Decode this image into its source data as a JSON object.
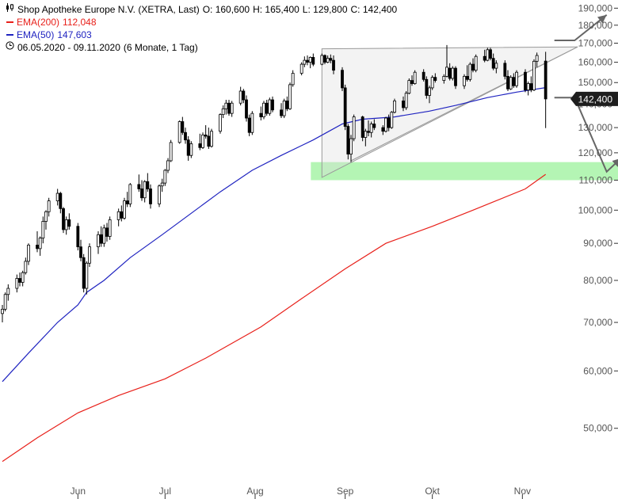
{
  "header": {
    "title": "Shop Apotheke Europe N.V. (XETRA, Last)",
    "ohlc": {
      "open": "O: 160,600",
      "high": "H: 165,400",
      "low": "L: 129,800",
      "close": "C: 142,400"
    },
    "ema200": {
      "label": "EMA(200)",
      "value": "112,048",
      "color": "#e8201a"
    },
    "ema50": {
      "label": "EMA(50)",
      "value": "147,603",
      "color": "#1f23c0"
    },
    "range": "06.05.2020 - 09.11.2020",
    "period": "(6 Monate, 1 Tag)",
    "chart_icon": "candlestick-icon",
    "clock_icon": "clock-icon"
  },
  "chart_data": {
    "type": "candlestick",
    "y_scale": "log",
    "ylim": [
      42000,
      195000
    ],
    "xlim": [
      "2020-05-06",
      "2020-11-17"
    ],
    "y_ticks": [
      50000,
      60000,
      70000,
      80000,
      90000,
      100000,
      110000,
      120000,
      130000,
      140000,
      150000,
      160000,
      170000,
      180000,
      190000
    ],
    "y_tick_labels": [
      "50,000",
      "60,000",
      "70,000",
      "80,000",
      "90,000",
      "100,000",
      "110,000",
      "120,000",
      "130,000",
      "140,000",
      "150,000",
      "160,000",
      "170,000",
      "180,000",
      "190,000"
    ],
    "x_ticks": [
      "2020-06-01",
      "2020-07-01",
      "2020-08-01",
      "2020-09-01",
      "2020-10-01",
      "2020-11-01"
    ],
    "x_tick_labels": [
      "Jun",
      "Jul",
      "Aug",
      "Sep",
      "Okt",
      "Nov"
    ],
    "last_price_label": "142,400",
    "last_price": 142400,
    "grid": false,
    "colors": {
      "up": "#ffffff",
      "down": "#000000",
      "ema200": "#e8201a",
      "ema50": "#1f23c0",
      "support_zone": "#b4f5b4",
      "triangle": "#999999",
      "arrows": "#666666"
    },
    "candles": [
      [
        "2020-05-06",
        72000,
        74000,
        70000,
        73000
      ],
      [
        "2020-05-07",
        73000,
        77000,
        72500,
        76500
      ],
      [
        "2020-05-08",
        76500,
        79000,
        75000,
        78000
      ],
      [
        "2020-05-11",
        78000,
        81500,
        77000,
        80500
      ],
      [
        "2020-05-12",
        80500,
        82000,
        78500,
        79500
      ],
      [
        "2020-05-13",
        79500,
        82500,
        78500,
        82000
      ],
      [
        "2020-05-14",
        82000,
        86000,
        81500,
        85000
      ],
      [
        "2020-05-15",
        85000,
        90000,
        84000,
        89500
      ],
      [
        "2020-05-18",
        89500,
        93500,
        87500,
        88500
      ],
      [
        "2020-05-19",
        88500,
        92000,
        86500,
        91500
      ],
      [
        "2020-05-20",
        91500,
        98000,
        90000,
        96500
      ],
      [
        "2020-05-21",
        96500,
        100000,
        94000,
        99500
      ],
      [
        "2020-05-22",
        99500,
        104000,
        98000,
        103000
      ],
      [
        "2020-05-25",
        103000,
        107000,
        101500,
        105500
      ],
      [
        "2020-05-26",
        105500,
        106000,
        99000,
        100500
      ],
      [
        "2020-05-27",
        100500,
        101000,
        93000,
        94000
      ],
      [
        "2020-05-28",
        94000,
        98000,
        92500,
        97000
      ],
      [
        "2020-05-29",
        97000,
        99000,
        94000,
        95000
      ],
      [
        "2020-06-01",
        95000,
        96000,
        88000,
        89000
      ],
      [
        "2020-06-02",
        89000,
        91000,
        85000,
        86000
      ],
      [
        "2020-06-03",
        86000,
        87000,
        77000,
        78000
      ],
      [
        "2020-06-04",
        78000,
        85000,
        76500,
        84500
      ],
      [
        "2020-06-05",
        84500,
        90000,
        83500,
        89000
      ],
      [
        "2020-06-08",
        89000,
        93500,
        87000,
        92500
      ],
      [
        "2020-06-09",
        92500,
        95000,
        89000,
        90000
      ],
      [
        "2020-06-10",
        90000,
        95500,
        89000,
        94500
      ],
      [
        "2020-06-11",
        94500,
        96000,
        90500,
        92000
      ],
      [
        "2020-06-12",
        92000,
        98000,
        91000,
        97000
      ],
      [
        "2020-06-15",
        97000,
        100500,
        95000,
        99500
      ],
      [
        "2020-06-16",
        99500,
        101500,
        96500,
        97500
      ],
      [
        "2020-06-17",
        97500,
        104000,
        97000,
        103000
      ],
      [
        "2020-06-18",
        103000,
        106000,
        101000,
        102000
      ],
      [
        "2020-06-19",
        102000,
        109000,
        101000,
        108500
      ],
      [
        "2020-06-22",
        108500,
        112000,
        106000,
        107000
      ],
      [
        "2020-06-23",
        107000,
        110000,
        103000,
        104000
      ],
      [
        "2020-06-24",
        104000,
        110000,
        102500,
        109500
      ],
      [
        "2020-06-25",
        109500,
        112500,
        106000,
        107000
      ],
      [
        "2020-06-26",
        107000,
        108500,
        100500,
        102000
      ],
      [
        "2020-06-29",
        102000,
        108500,
        101000,
        108000
      ],
      [
        "2020-06-30",
        108000,
        110500,
        106000,
        109000
      ],
      [
        "2020-07-01",
        109000,
        114000,
        108000,
        113500
      ],
      [
        "2020-07-02",
        113500,
        118000,
        112500,
        117000
      ],
      [
        "2020-07-03",
        117000,
        125000,
        116500,
        124000
      ],
      [
        "2020-07-06",
        124000,
        133000,
        123500,
        132500
      ],
      [
        "2020-07-07",
        132500,
        134500,
        127000,
        128000
      ],
      [
        "2020-07-08",
        128000,
        130000,
        123500,
        125000
      ],
      [
        "2020-07-09",
        125000,
        126500,
        117000,
        119000
      ],
      [
        "2020-07-10",
        119000,
        124500,
        118000,
        123500
      ],
      [
        "2020-07-13",
        123500,
        127500,
        121000,
        122000
      ],
      [
        "2020-07-14",
        122000,
        128000,
        121500,
        127000
      ],
      [
        "2020-07-15",
        127000,
        131000,
        125500,
        126500
      ],
      [
        "2020-07-16",
        126500,
        130000,
        121500,
        122500
      ],
      [
        "2020-07-17",
        122500,
        129500,
        122000,
        128500
      ],
      [
        "2020-07-20",
        128500,
        136000,
        127500,
        135500
      ],
      [
        "2020-07-21",
        135500,
        139500,
        134000,
        138000
      ],
      [
        "2020-07-22",
        138000,
        142000,
        135500,
        140500
      ],
      [
        "2020-07-23",
        140500,
        142000,
        135000,
        136000
      ],
      [
        "2020-07-24",
        136000,
        141500,
        134500,
        140500
      ],
      [
        "2020-07-27",
        140500,
        148000,
        139500,
        146000
      ],
      [
        "2020-07-28",
        146000,
        147000,
        140500,
        142000
      ],
      [
        "2020-07-29",
        142000,
        144000,
        132500,
        134000
      ],
      [
        "2020-07-30",
        134000,
        135500,
        126500,
        128000
      ],
      [
        "2020-07-31",
        128000,
        137000,
        127000,
        136000
      ],
      [
        "2020-08-03",
        136000,
        139000,
        133000,
        134500
      ],
      [
        "2020-08-04",
        134500,
        141500,
        133500,
        140500
      ],
      [
        "2020-08-05",
        140500,
        142000,
        135000,
        136000
      ],
      [
        "2020-08-06",
        136000,
        143000,
        135000,
        142000
      ],
      [
        "2020-08-07",
        142000,
        143500,
        136500,
        137500
      ],
      [
        "2020-08-10",
        137500,
        140500,
        134000,
        135000
      ],
      [
        "2020-08-11",
        135000,
        142500,
        134000,
        141500
      ],
      [
        "2020-08-12",
        141500,
        143500,
        137000,
        138000
      ],
      [
        "2020-08-13",
        138000,
        150000,
        137500,
        149000
      ],
      [
        "2020-08-14",
        149000,
        156000,
        148000,
        154500
      ],
      [
        "2020-08-17",
        154500,
        160000,
        153500,
        159000
      ],
      [
        "2020-08-18",
        159000,
        163000,
        157500,
        161000
      ],
      [
        "2020-08-19",
        161000,
        163500,
        158500,
        160000
      ],
      [
        "2020-08-20",
        160000,
        163000,
        157000,
        162500
      ],
      [
        "2020-08-21",
        162500,
        164500,
        158000,
        159000
      ],
      [
        "2020-08-24",
        159000,
        164500,
        158500,
        163500
      ],
      [
        "2020-08-25",
        163500,
        164000,
        159000,
        160000
      ],
      [
        "2020-08-26",
        160000,
        163500,
        159500,
        162000
      ],
      [
        "2020-08-27",
        162000,
        164000,
        159500,
        161000
      ],
      [
        "2020-08-28",
        161000,
        163500,
        154000,
        156000
      ],
      [
        "2020-08-31",
        156000,
        157500,
        146000,
        147500
      ],
      [
        "2020-09-01",
        147500,
        149000,
        129000,
        130500
      ],
      [
        "2020-09-02",
        130500,
        131500,
        117500,
        119500
      ],
      [
        "2020-09-03",
        119500,
        127000,
        116500,
        125500
      ],
      [
        "2020-09-04",
        125500,
        135500,
        124500,
        134500
      ],
      [
        "2020-09-07",
        134500,
        135000,
        124500,
        126000
      ],
      [
        "2020-09-08",
        126000,
        129500,
        122500,
        128500
      ],
      [
        "2020-09-09",
        128500,
        133000,
        126500,
        128000
      ],
      [
        "2020-09-10",
        128000,
        132500,
        126000,
        131500
      ],
      [
        "2020-09-11",
        131500,
        133500,
        129000,
        130000
      ],
      [
        "2020-09-14",
        130000,
        131000,
        127000,
        128500
      ],
      [
        "2020-09-15",
        128500,
        134500,
        128000,
        134000
      ],
      [
        "2020-09-16",
        134000,
        135500,
        128500,
        130000
      ],
      [
        "2020-09-17",
        130000,
        137000,
        129500,
        136500
      ],
      [
        "2020-09-18",
        136500,
        142500,
        136000,
        141500
      ],
      [
        "2020-09-21",
        141500,
        143500,
        137000,
        138500
      ],
      [
        "2020-09-22",
        138500,
        146000,
        137500,
        145000
      ],
      [
        "2020-09-23",
        145000,
        152000,
        144500,
        151000
      ],
      [
        "2020-09-24",
        151000,
        153500,
        148500,
        149500
      ],
      [
        "2020-09-25",
        149500,
        156000,
        149000,
        155000
      ],
      [
        "2020-09-28",
        155000,
        156500,
        150500,
        151500
      ],
      [
        "2020-09-29",
        151500,
        153000,
        142500,
        144000
      ],
      [
        "2020-09-30",
        144000,
        148500,
        140500,
        147500
      ],
      [
        "2020-10-01",
        147500,
        153500,
        146500,
        152500
      ],
      [
        "2020-10-02",
        152500,
        154500,
        150000,
        151000
      ],
      [
        "2020-10-05",
        151000,
        154000,
        149500,
        153000
      ],
      [
        "2020-10-06",
        153000,
        169000,
        152500,
        157500
      ],
      [
        "2020-10-07",
        157000,
        159500,
        151000,
        152000
      ],
      [
        "2020-10-08",
        152000,
        158000,
        151000,
        157000
      ],
      [
        "2020-10-09",
        157000,
        158000,
        147000,
        148500
      ],
      [
        "2020-10-12",
        148500,
        154000,
        147000,
        153000
      ],
      [
        "2020-10-13",
        153000,
        158500,
        150500,
        151500
      ],
      [
        "2020-10-14",
        151500,
        160000,
        150500,
        159000
      ],
      [
        "2020-10-15",
        159000,
        162000,
        155000,
        156000
      ],
      [
        "2020-10-16",
        156000,
        164000,
        155000,
        163000
      ],
      [
        "2020-10-19",
        163000,
        166500,
        160000,
        161000
      ],
      [
        "2020-10-20",
        161000,
        167500,
        160500,
        166500
      ],
      [
        "2020-10-21",
        166500,
        167500,
        161000,
        162000
      ],
      [
        "2020-10-22",
        162000,
        164500,
        156000,
        157000
      ],
      [
        "2020-10-23",
        157000,
        161000,
        154500,
        159500
      ],
      [
        "2020-10-26",
        159500,
        161000,
        151500,
        153000
      ],
      [
        "2020-10-27",
        153000,
        156000,
        146000,
        147000
      ],
      [
        "2020-10-28",
        147000,
        153500,
        146500,
        152500
      ],
      [
        "2020-10-29",
        152500,
        154500,
        147500,
        148500
      ],
      [
        "2020-10-30",
        148500,
        156000,
        147500,
        155000
      ],
      [
        "2020-11-02",
        155000,
        156500,
        145500,
        146500
      ],
      [
        "2020-11-03",
        146500,
        150500,
        144000,
        149500
      ],
      [
        "2020-11-04",
        149500,
        153000,
        145500,
        146500
      ],
      [
        "2020-11-05",
        146500,
        161500,
        146000,
        160500
      ],
      [
        "2020-11-06",
        160500,
        165000,
        157500,
        163500
      ],
      [
        "2020-11-09",
        160600,
        165400,
        129800,
        142400
      ]
    ],
    "ema50": [
      [
        "2020-05-06",
        58000
      ],
      [
        "2020-05-15",
        63500
      ],
      [
        "2020-05-25",
        70000
      ],
      [
        "2020-06-01",
        74000
      ],
      [
        "2020-06-04",
        77000
      ],
      [
        "2020-06-10",
        80000
      ],
      [
        "2020-06-19",
        86000
      ],
      [
        "2020-06-30",
        92500
      ],
      [
        "2020-07-10",
        99000
      ],
      [
        "2020-07-20",
        106000
      ],
      [
        "2020-07-31",
        113500
      ],
      [
        "2020-08-10",
        119000
      ],
      [
        "2020-08-21",
        125000
      ],
      [
        "2020-08-31",
        131500
      ],
      [
        "2020-09-07",
        133500
      ],
      [
        "2020-09-18",
        134500
      ],
      [
        "2020-09-30",
        137000
      ],
      [
        "2020-10-09",
        139500
      ],
      [
        "2020-10-20",
        143000
      ],
      [
        "2020-10-30",
        145500
      ],
      [
        "2020-11-09",
        147603
      ]
    ],
    "ema200": [
      [
        "2020-05-06",
        45000
      ],
      [
        "2020-05-18",
        48500
      ],
      [
        "2020-06-01",
        52500
      ],
      [
        "2020-06-15",
        55500
      ],
      [
        "2020-07-01",
        58500
      ],
      [
        "2020-07-15",
        62500
      ],
      [
        "2020-08-03",
        69000
      ],
      [
        "2020-08-17",
        75500
      ],
      [
        "2020-09-01",
        83000
      ],
      [
        "2020-09-15",
        90000
      ],
      [
        "2020-10-01",
        95000
      ],
      [
        "2020-10-15",
        100000
      ],
      [
        "2020-11-02",
        107000
      ],
      [
        "2020-11-09",
        112048
      ]
    ],
    "annotations": {
      "triangle": [
        [
          "2020-08-24",
          167000
        ],
        [
          "2020-11-20",
          168000
        ],
        [
          "2020-08-24",
          111000
        ]
      ],
      "triangle_lower_edge": [
        [
          "2020-09-03",
          117000
        ],
        [
          "2020-11-20",
          168000
        ]
      ],
      "support_zone": [
        110000,
        116500
      ],
      "arrow_up": [
        [
          "2020-11-12",
          171500
        ],
        [
          "2020-11-19",
          171500
        ],
        [
          "2020-11-30",
          186000
        ]
      ],
      "arrow_down": [
        [
          "2020-11-12",
          143000
        ],
        [
          "2020-11-19",
          143000
        ],
        [
          "2020-11-30",
          113000
        ],
        [
          "2020-12-05",
          118000
        ]
      ]
    }
  }
}
